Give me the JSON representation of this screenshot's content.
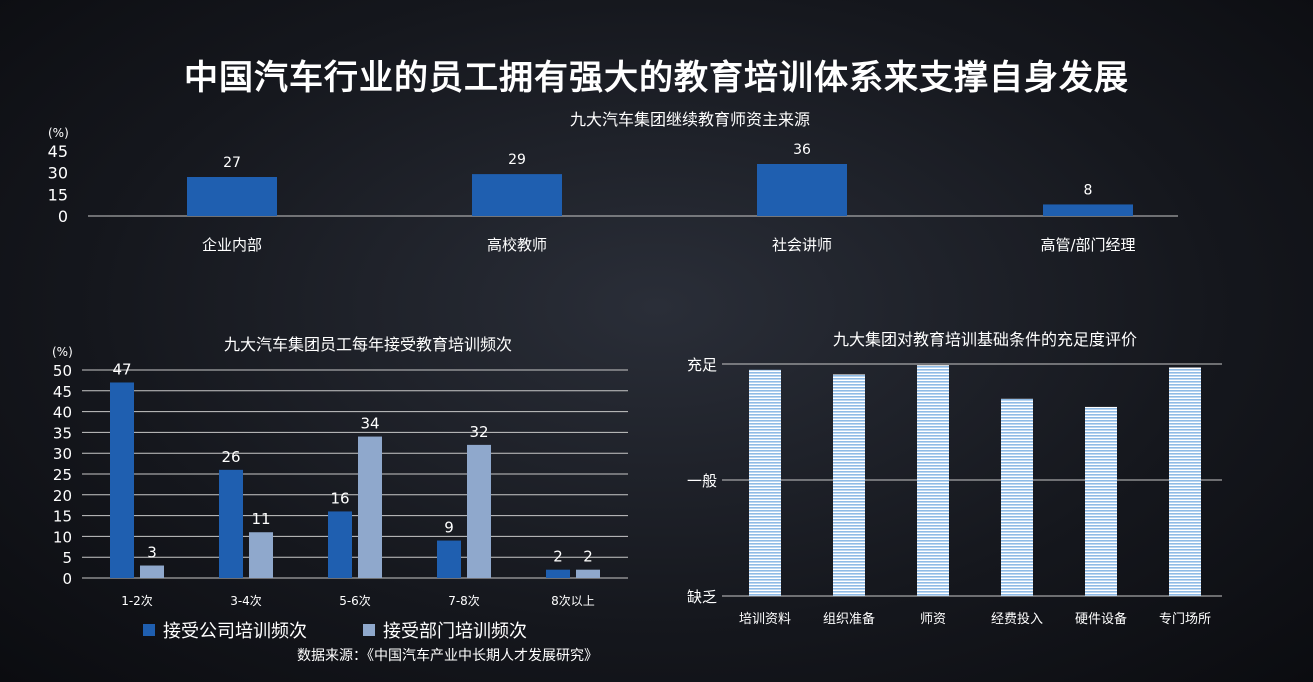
{
  "title": "中国汽车行业的员工拥有强大的教育培训体系来支撑自身发展",
  "source": "数据来源：《中国汽车产业中长期人才发展研究》",
  "colors": {
    "dark_blue": "#1f5fb0",
    "light_blue": "#8fa8cc",
    "striped": "#9fc4e8",
    "grid": "#c8c8c8"
  },
  "chart_data": [
    {
      "type": "bar",
      "title": "九大汽车集团继续教育师资主来源",
      "ylabel": "(%)",
      "yticks": [
        45,
        30,
        15,
        0
      ],
      "ylim": [
        0,
        45
      ],
      "categories": [
        "企业内部",
        "高校教师",
        "社会讲师",
        "高管/部门经理"
      ],
      "values": [
        27,
        29,
        36,
        8
      ],
      "grid": false
    },
    {
      "type": "bar",
      "title": "九大汽车集团员工每年接受教育培训频次",
      "ylabel": "(%)",
      "yticks": [
        50,
        45,
        40,
        35,
        30,
        25,
        20,
        15,
        10,
        5,
        0
      ],
      "ylim": [
        0,
        50
      ],
      "categories": [
        "1-2次",
        "3-4次",
        "5-6次",
        "7-8次",
        "8次以上"
      ],
      "series": [
        {
          "name": "接受公司培训频次",
          "values": [
            47,
            26,
            16,
            9,
            2
          ]
        },
        {
          "name": "接受部门培训频次",
          "values": [
            3,
            11,
            34,
            32,
            2
          ]
        }
      ],
      "grid": true,
      "legend": "bottom-left"
    },
    {
      "type": "bar",
      "title": "九大集团对教育培训基础条件的充足度评价",
      "yticks": [
        "充足",
        "一般",
        "缺乏"
      ],
      "ylim": [
        0,
        2
      ],
      "categories": [
        "培训资料",
        "组织准备",
        "师资",
        "经费投入",
        "硬件设备",
        "专门场所"
      ],
      "values": [
        1.95,
        1.91,
        1.99,
        1.7,
        1.63,
        1.97
      ],
      "grid": true
    }
  ]
}
